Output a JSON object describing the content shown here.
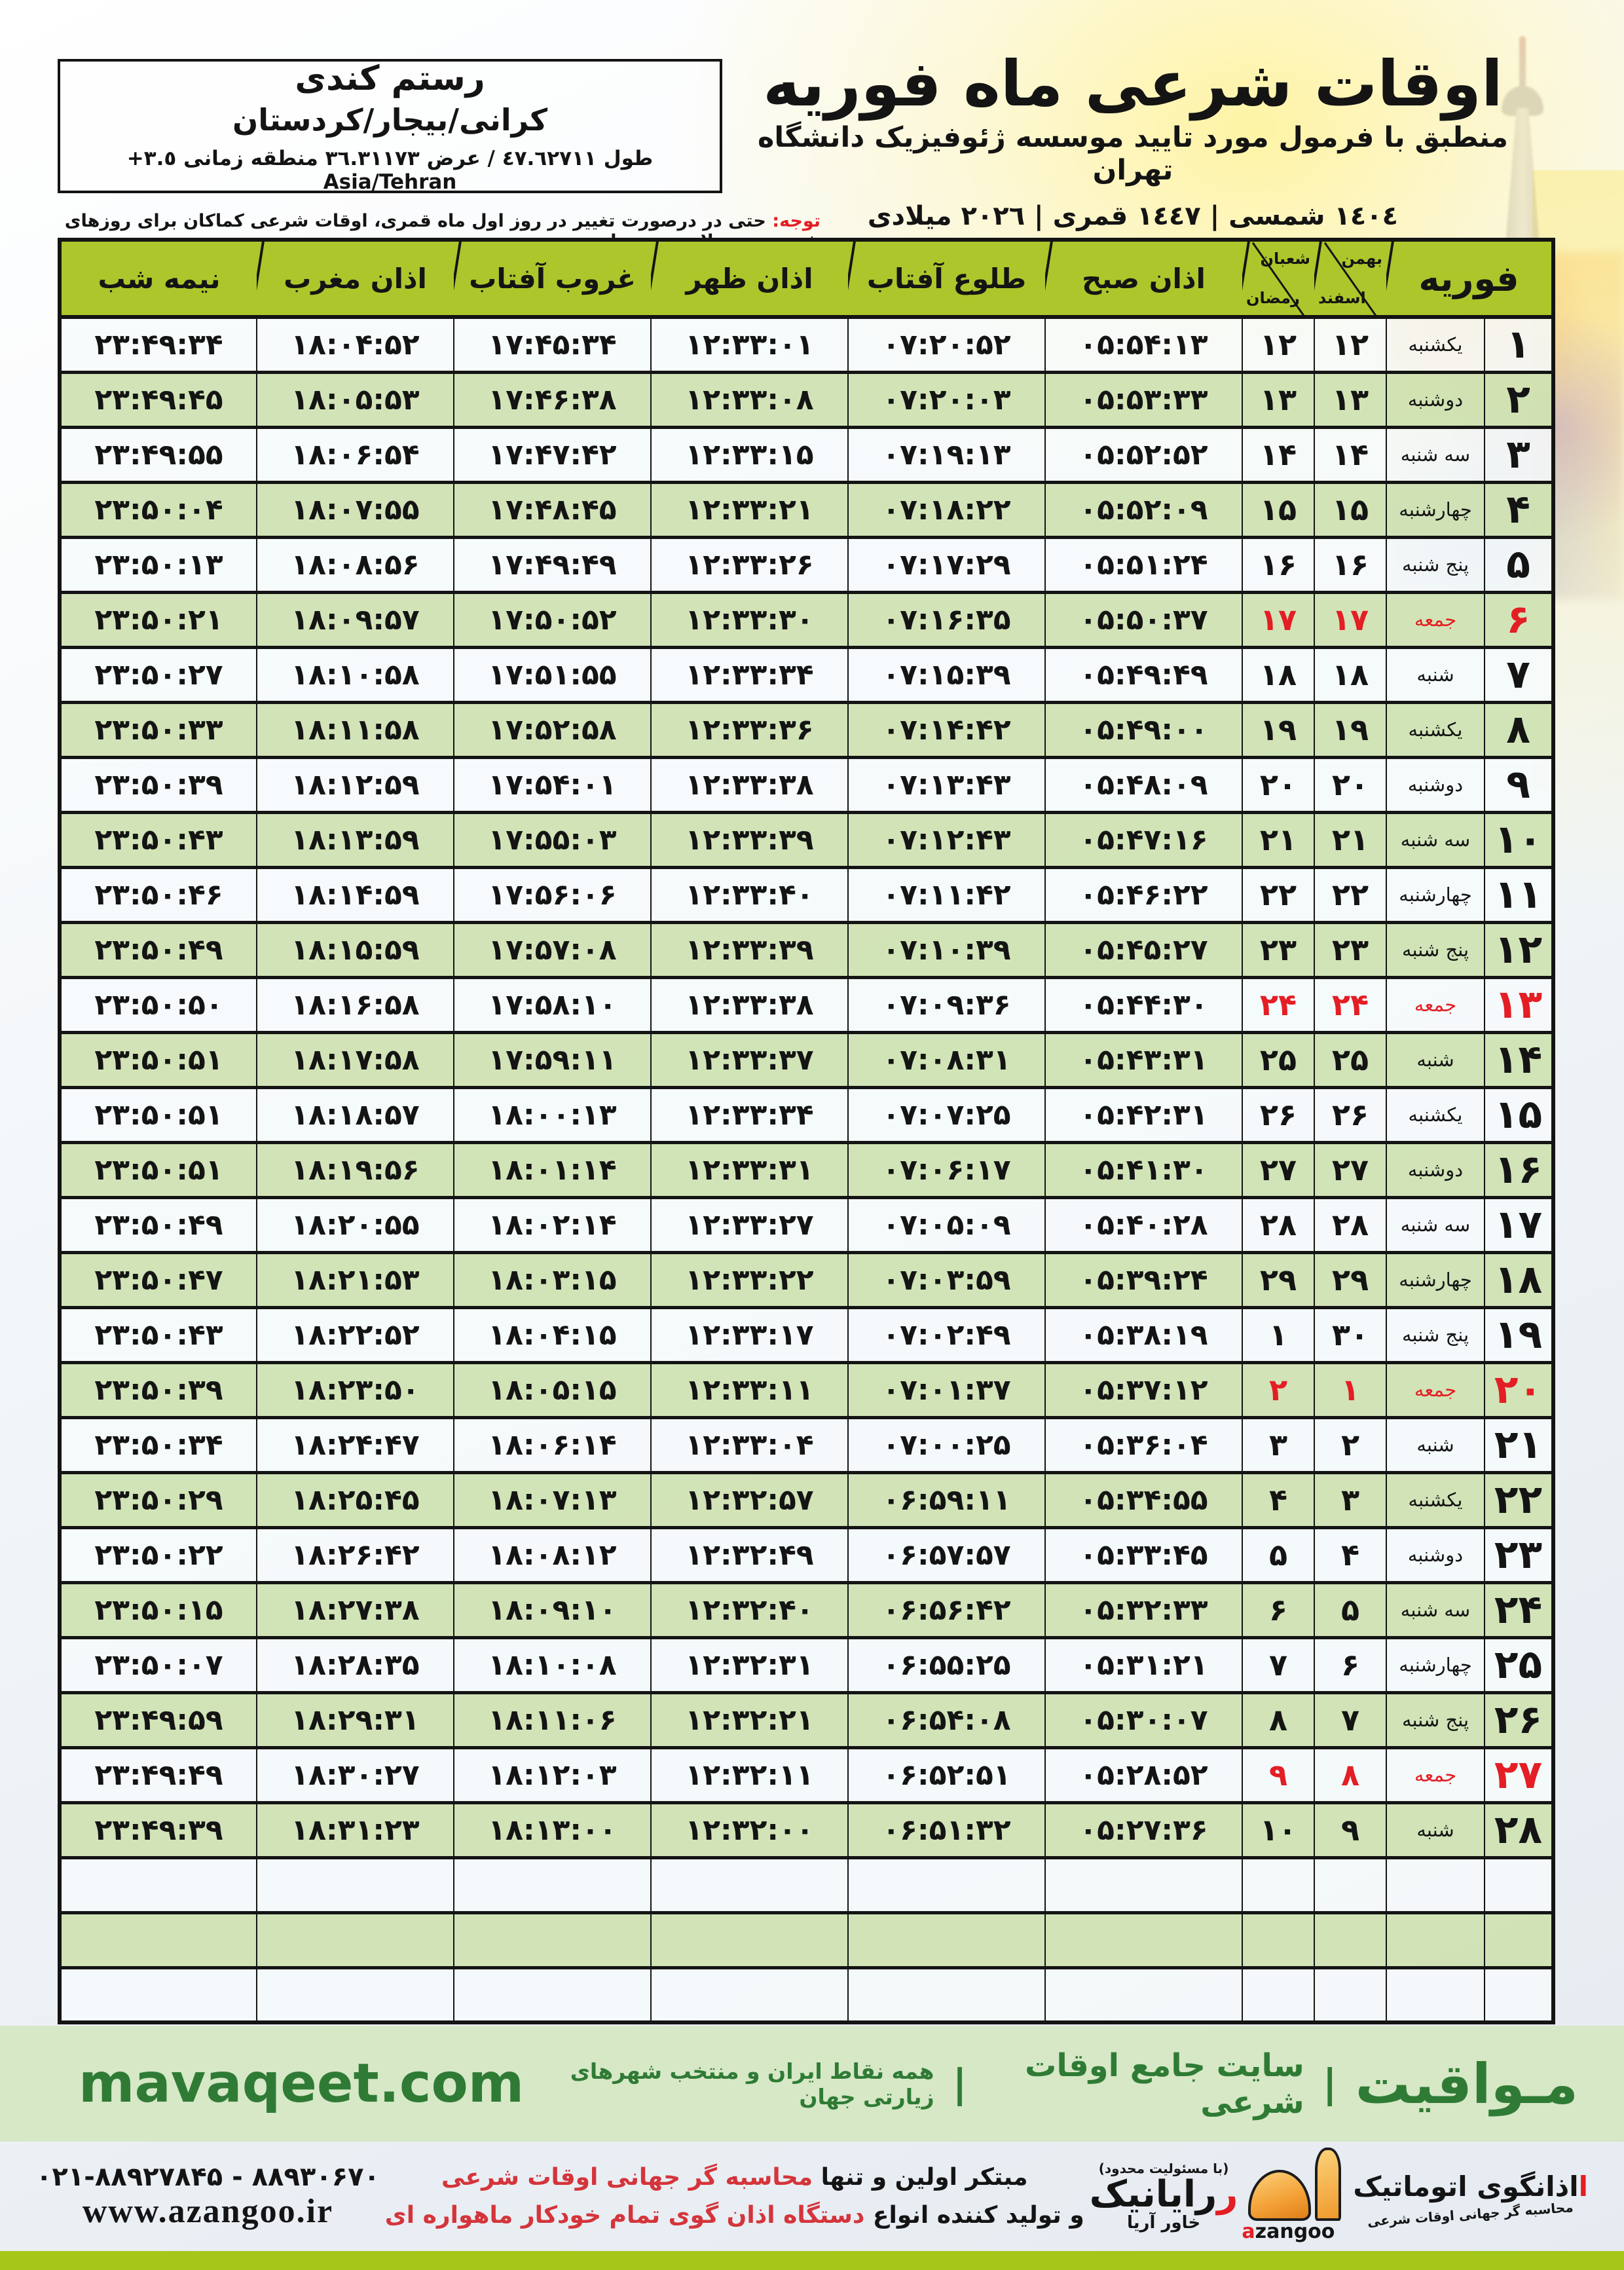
{
  "colors": {
    "accent_red": "#e31e24",
    "header_green": "#adc62b",
    "row_green": "#d0e3b2",
    "band_green": "#d6e8c6",
    "brand_green": "#2f7b35",
    "lime_bar": "#a5c719",
    "dome_orange": "#f09e2e"
  },
  "location_box": {
    "line1": "رستم کندی",
    "line2": "کرانی/بیجار/کردستان",
    "line3": "طول ٤٧.٦٢٧١١ / عرض ٣٦.٣١١٧٣ منطقه زمانی ٣.٥+ Asia/Tehran"
  },
  "header": {
    "title": "اوقات شرعی ماه فوریه",
    "subtitle": "منطبق با فرمول مورد تایید موسسه ژئوفیزیک دانشگاه تهران",
    "years": "١٤٠٤ شمسی | ١٤٤٧ قمری | ٢٠٢٦ میلادی"
  },
  "note": {
    "label": "توجه:",
    "text": " حتی در درصورت تغییر در روز اول ماه قمری، اوقات شرعی کماکان برای روزهای شمسی و میلادی معتبر است."
  },
  "table": {
    "columns": {
      "month": "فوریه",
      "solar_top": "بهمن",
      "solar_bottom": "اسفند",
      "lunar_top": "شعبان",
      "lunar_bottom": "رمضان",
      "fajr": "اذان صبح",
      "sunrise": "طلوع آفتاب",
      "dhuhr": "اذان ظهر",
      "sunset": "غروب آفتاب",
      "maghrib": "اذان مغرب",
      "midnight": "نیمه شب"
    },
    "empty_rows": 3,
    "rows": [
      {
        "day": "۱",
        "weekday": "یکشنبه",
        "solar": "۱۲",
        "lunar": "۱۲",
        "friday": false,
        "fajr": "۰۵:۵۴:۱۳",
        "sunrise": "۰۷:۲۰:۵۲",
        "dhuhr": "۱۲:۳۳:۰۱",
        "sunset": "۱۷:۴۵:۳۴",
        "maghrib": "۱۸:۰۴:۵۲",
        "midnight": "۲۳:۴۹:۳۴"
      },
      {
        "day": "۲",
        "weekday": "دوشنبه",
        "solar": "۱۳",
        "lunar": "۱۳",
        "friday": false,
        "fajr": "۰۵:۵۳:۳۳",
        "sunrise": "۰۷:۲۰:۰۳",
        "dhuhr": "۱۲:۳۳:۰۸",
        "sunset": "۱۷:۴۶:۳۸",
        "maghrib": "۱۸:۰۵:۵۳",
        "midnight": "۲۳:۴۹:۴۵"
      },
      {
        "day": "۳",
        "weekday": "سه شنبه",
        "solar": "۱۴",
        "lunar": "۱۴",
        "friday": false,
        "fajr": "۰۵:۵۲:۵۲",
        "sunrise": "۰۷:۱۹:۱۳",
        "dhuhr": "۱۲:۳۳:۱۵",
        "sunset": "۱۷:۴۷:۴۲",
        "maghrib": "۱۸:۰۶:۵۴",
        "midnight": "۲۳:۴۹:۵۵"
      },
      {
        "day": "۴",
        "weekday": "چهارشنبه",
        "solar": "۱۵",
        "lunar": "۱۵",
        "friday": false,
        "fajr": "۰۵:۵۲:۰۹",
        "sunrise": "۰۷:۱۸:۲۲",
        "dhuhr": "۱۲:۳۳:۲۱",
        "sunset": "۱۷:۴۸:۴۵",
        "maghrib": "۱۸:۰۷:۵۵",
        "midnight": "۲۳:۵۰:۰۴"
      },
      {
        "day": "۵",
        "weekday": "پنج شنبه",
        "solar": "۱۶",
        "lunar": "۱۶",
        "friday": false,
        "fajr": "۰۵:۵۱:۲۴",
        "sunrise": "۰۷:۱۷:۲۹",
        "dhuhr": "۱۲:۳۳:۲۶",
        "sunset": "۱۷:۴۹:۴۹",
        "maghrib": "۱۸:۰۸:۵۶",
        "midnight": "۲۳:۵۰:۱۳"
      },
      {
        "day": "۶",
        "weekday": "جمعه",
        "solar": "۱۷",
        "lunar": "۱۷",
        "friday": true,
        "fajr": "۰۵:۵۰:۳۷",
        "sunrise": "۰۷:۱۶:۳۵",
        "dhuhr": "۱۲:۳۳:۳۰",
        "sunset": "۱۷:۵۰:۵۲",
        "maghrib": "۱۸:۰۹:۵۷",
        "midnight": "۲۳:۵۰:۲۱"
      },
      {
        "day": "۷",
        "weekday": "شنبه",
        "solar": "۱۸",
        "lunar": "۱۸",
        "friday": false,
        "fajr": "۰۵:۴۹:۴۹",
        "sunrise": "۰۷:۱۵:۳۹",
        "dhuhr": "۱۲:۳۳:۳۴",
        "sunset": "۱۷:۵۱:۵۵",
        "maghrib": "۱۸:۱۰:۵۸",
        "midnight": "۲۳:۵۰:۲۷"
      },
      {
        "day": "۸",
        "weekday": "یکشنبه",
        "solar": "۱۹",
        "lunar": "۱۹",
        "friday": false,
        "fajr": "۰۵:۴۹:۰۰",
        "sunrise": "۰۷:۱۴:۴۲",
        "dhuhr": "۱۲:۳۳:۳۶",
        "sunset": "۱۷:۵۲:۵۸",
        "maghrib": "۱۸:۱۱:۵۸",
        "midnight": "۲۳:۵۰:۳۳"
      },
      {
        "day": "۹",
        "weekday": "دوشنبه",
        "solar": "۲۰",
        "lunar": "۲۰",
        "friday": false,
        "fajr": "۰۵:۴۸:۰۹",
        "sunrise": "۰۷:۱۳:۴۳",
        "dhuhr": "۱۲:۳۳:۳۸",
        "sunset": "۱۷:۵۴:۰۱",
        "maghrib": "۱۸:۱۲:۵۹",
        "midnight": "۲۳:۵۰:۳۹"
      },
      {
        "day": "۱۰",
        "weekday": "سه شنبه",
        "solar": "۲۱",
        "lunar": "۲۱",
        "friday": false,
        "fajr": "۰۵:۴۷:۱۶",
        "sunrise": "۰۷:۱۲:۴۳",
        "dhuhr": "۱۲:۳۳:۳۹",
        "sunset": "۱۷:۵۵:۰۳",
        "maghrib": "۱۸:۱۳:۵۹",
        "midnight": "۲۳:۵۰:۴۳"
      },
      {
        "day": "۱۱",
        "weekday": "چهارشنبه",
        "solar": "۲۲",
        "lunar": "۲۲",
        "friday": false,
        "fajr": "۰۵:۴۶:۲۲",
        "sunrise": "۰۷:۱۱:۴۲",
        "dhuhr": "۱۲:۳۳:۴۰",
        "sunset": "۱۷:۵۶:۰۶",
        "maghrib": "۱۸:۱۴:۵۹",
        "midnight": "۲۳:۵۰:۴۶"
      },
      {
        "day": "۱۲",
        "weekday": "پنج شنبه",
        "solar": "۲۳",
        "lunar": "۲۳",
        "friday": false,
        "fajr": "۰۵:۴۵:۲۷",
        "sunrise": "۰۷:۱۰:۳۹",
        "dhuhr": "۱۲:۳۳:۳۹",
        "sunset": "۱۷:۵۷:۰۸",
        "maghrib": "۱۸:۱۵:۵۹",
        "midnight": "۲۳:۵۰:۴۹"
      },
      {
        "day": "۱۳",
        "weekday": "جمعه",
        "solar": "۲۴",
        "lunar": "۲۴",
        "friday": true,
        "fajr": "۰۵:۴۴:۳۰",
        "sunrise": "۰۷:۰۹:۳۶",
        "dhuhr": "۱۲:۳۳:۳۸",
        "sunset": "۱۷:۵۸:۱۰",
        "maghrib": "۱۸:۱۶:۵۸",
        "midnight": "۲۳:۵۰:۵۰"
      },
      {
        "day": "۱۴",
        "weekday": "شنبه",
        "solar": "۲۵",
        "lunar": "۲۵",
        "friday": false,
        "fajr": "۰۵:۴۳:۳۱",
        "sunrise": "۰۷:۰۸:۳۱",
        "dhuhr": "۱۲:۳۳:۳۷",
        "sunset": "۱۷:۵۹:۱۱",
        "maghrib": "۱۸:۱۷:۵۸",
        "midnight": "۲۳:۵۰:۵۱"
      },
      {
        "day": "۱۵",
        "weekday": "یکشنبه",
        "solar": "۲۶",
        "lunar": "۲۶",
        "friday": false,
        "fajr": "۰۵:۴۲:۳۱",
        "sunrise": "۰۷:۰۷:۲۵",
        "dhuhr": "۱۲:۳۳:۳۴",
        "sunset": "۱۸:۰۰:۱۳",
        "maghrib": "۱۸:۱۸:۵۷",
        "midnight": "۲۳:۵۰:۵۱"
      },
      {
        "day": "۱۶",
        "weekday": "دوشنبه",
        "solar": "۲۷",
        "lunar": "۲۷",
        "friday": false,
        "fajr": "۰۵:۴۱:۳۰",
        "sunrise": "۰۷:۰۶:۱۷",
        "dhuhr": "۱۲:۳۳:۳۱",
        "sunset": "۱۸:۰۱:۱۴",
        "maghrib": "۱۸:۱۹:۵۶",
        "midnight": "۲۳:۵۰:۵۱"
      },
      {
        "day": "۱۷",
        "weekday": "سه شنبه",
        "solar": "۲۸",
        "lunar": "۲۸",
        "friday": false,
        "fajr": "۰۵:۴۰:۲۸",
        "sunrise": "۰۷:۰۵:۰۹",
        "dhuhr": "۱۲:۳۳:۲۷",
        "sunset": "۱۸:۰۲:۱۴",
        "maghrib": "۱۸:۲۰:۵۵",
        "midnight": "۲۳:۵۰:۴۹"
      },
      {
        "day": "۱۸",
        "weekday": "چهارشنبه",
        "solar": "۲۹",
        "lunar": "۲۹",
        "friday": false,
        "fajr": "۰۵:۳۹:۲۴",
        "sunrise": "۰۷:۰۳:۵۹",
        "dhuhr": "۱۲:۳۳:۲۲",
        "sunset": "۱۸:۰۳:۱۵",
        "maghrib": "۱۸:۲۱:۵۳",
        "midnight": "۲۳:۵۰:۴۷"
      },
      {
        "day": "۱۹",
        "weekday": "پنج شنبه",
        "solar": "۳۰",
        "lunar": "۱",
        "friday": false,
        "fajr": "۰۵:۳۸:۱۹",
        "sunrise": "۰۷:۰۲:۴۹",
        "dhuhr": "۱۲:۳۳:۱۷",
        "sunset": "۱۸:۰۴:۱۵",
        "maghrib": "۱۸:۲۲:۵۲",
        "midnight": "۲۳:۵۰:۴۳"
      },
      {
        "day": "۲۰",
        "weekday": "جمعه",
        "solar": "۱",
        "lunar": "۲",
        "friday": true,
        "fajr": "۰۵:۳۷:۱۲",
        "sunrise": "۰۷:۰۱:۳۷",
        "dhuhr": "۱۲:۳۳:۱۱",
        "sunset": "۱۸:۰۵:۱۵",
        "maghrib": "۱۸:۲۳:۵۰",
        "midnight": "۲۳:۵۰:۳۹"
      },
      {
        "day": "۲۱",
        "weekday": "شنبه",
        "solar": "۲",
        "lunar": "۳",
        "friday": false,
        "fajr": "۰۵:۳۶:۰۴",
        "sunrise": "۰۷:۰۰:۲۵",
        "dhuhr": "۱۲:۳۳:۰۴",
        "sunset": "۱۸:۰۶:۱۴",
        "maghrib": "۱۸:۲۴:۴۷",
        "midnight": "۲۳:۵۰:۳۴"
      },
      {
        "day": "۲۲",
        "weekday": "یکشنبه",
        "solar": "۳",
        "lunar": "۴",
        "friday": false,
        "fajr": "۰۵:۳۴:۵۵",
        "sunrise": "۰۶:۵۹:۱۱",
        "dhuhr": "۱۲:۳۲:۵۷",
        "sunset": "۱۸:۰۷:۱۳",
        "maghrib": "۱۸:۲۵:۴۵",
        "midnight": "۲۳:۵۰:۲۹"
      },
      {
        "day": "۲۳",
        "weekday": "دوشنبه",
        "solar": "۴",
        "lunar": "۵",
        "friday": false,
        "fajr": "۰۵:۳۳:۴۵",
        "sunrise": "۰۶:۵۷:۵۷",
        "dhuhr": "۱۲:۳۲:۴۹",
        "sunset": "۱۸:۰۸:۱۲",
        "maghrib": "۱۸:۲۶:۴۲",
        "midnight": "۲۳:۵۰:۲۲"
      },
      {
        "day": "۲۴",
        "weekday": "سه شنبه",
        "solar": "۵",
        "lunar": "۶",
        "friday": false,
        "fajr": "۰۵:۳۲:۳۳",
        "sunrise": "۰۶:۵۶:۴۲",
        "dhuhr": "۱۲:۳۲:۴۰",
        "sunset": "۱۸:۰۹:۱۰",
        "maghrib": "۱۸:۲۷:۳۸",
        "midnight": "۲۳:۵۰:۱۵"
      },
      {
        "day": "۲۵",
        "weekday": "چهارشنبه",
        "solar": "۶",
        "lunar": "۷",
        "friday": false,
        "fajr": "۰۵:۳۱:۲۱",
        "sunrise": "۰۶:۵۵:۲۵",
        "dhuhr": "۱۲:۳۲:۳۱",
        "sunset": "۱۸:۱۰:۰۸",
        "maghrib": "۱۸:۲۸:۳۵",
        "midnight": "۲۳:۵۰:۰۷"
      },
      {
        "day": "۲۶",
        "weekday": "پنج شنبه",
        "solar": "۷",
        "lunar": "۸",
        "friday": false,
        "fajr": "۰۵:۳۰:۰۷",
        "sunrise": "۰۶:۵۴:۰۸",
        "dhuhr": "۱۲:۳۲:۲۱",
        "sunset": "۱۸:۱۱:۰۶",
        "maghrib": "۱۸:۲۹:۳۱",
        "midnight": "۲۳:۴۹:۵۹"
      },
      {
        "day": "۲۷",
        "weekday": "جمعه",
        "solar": "۸",
        "lunar": "۹",
        "friday": true,
        "fajr": "۰۵:۲۸:۵۲",
        "sunrise": "۰۶:۵۲:۵۱",
        "dhuhr": "۱۲:۳۲:۱۱",
        "sunset": "۱۸:۱۲:۰۳",
        "maghrib": "۱۸:۳۰:۲۷",
        "midnight": "۲۳:۴۹:۴۹"
      },
      {
        "day": "۲۸",
        "weekday": "شنبه",
        "solar": "۹",
        "lunar": "۱۰",
        "friday": false,
        "fajr": "۰۵:۲۷:۳۶",
        "sunrise": "۰۶:۵۱:۳۲",
        "dhuhr": "۱۲:۳۲:۰۰",
        "sunset": "۱۸:۱۳:۰۰",
        "maghrib": "۱۸:۳۱:۲۳",
        "midnight": "۲۳:۴۹:۳۹"
      }
    ]
  },
  "mavaqeet_band": {
    "brand": "مـواقیت",
    "separator": "|",
    "tagline1": "سایت جامع اوقات شرعی",
    "tagline2": "همه نقاط ایران و منتخب شهرهای زیارتی جهان",
    "site": "mavaqeet.com"
  },
  "bottom": {
    "claims_line1_black": "مبتکر اولین و تنها ",
    "claims_line1_red": "محاسبه گر جهانی اوقات شرعی",
    "claims_line2_black": "و تولید کننده انواع ",
    "claims_line2_red": "دستگاه اذان گوی تمام خودکار ماهواره ای",
    "rayanik_note": "(با مسئولیت محدود)",
    "rayanik_name": "رایانیک",
    "rayanik_sub": "خاور آریا",
    "azangoo_fa": "اذانگوی اتوماتیک",
    "azangoo_en_a": "a",
    "azangoo_en_rest": "zangoo",
    "azangoo_tagline": "محاسبه گر جهانی اوقات شرعی",
    "phones": "۰۲۱-۸۸۹۲۷۸۴۵ - ۸۸۹۳۰۶۷۰",
    "website": "www.azangoo.ir"
  }
}
